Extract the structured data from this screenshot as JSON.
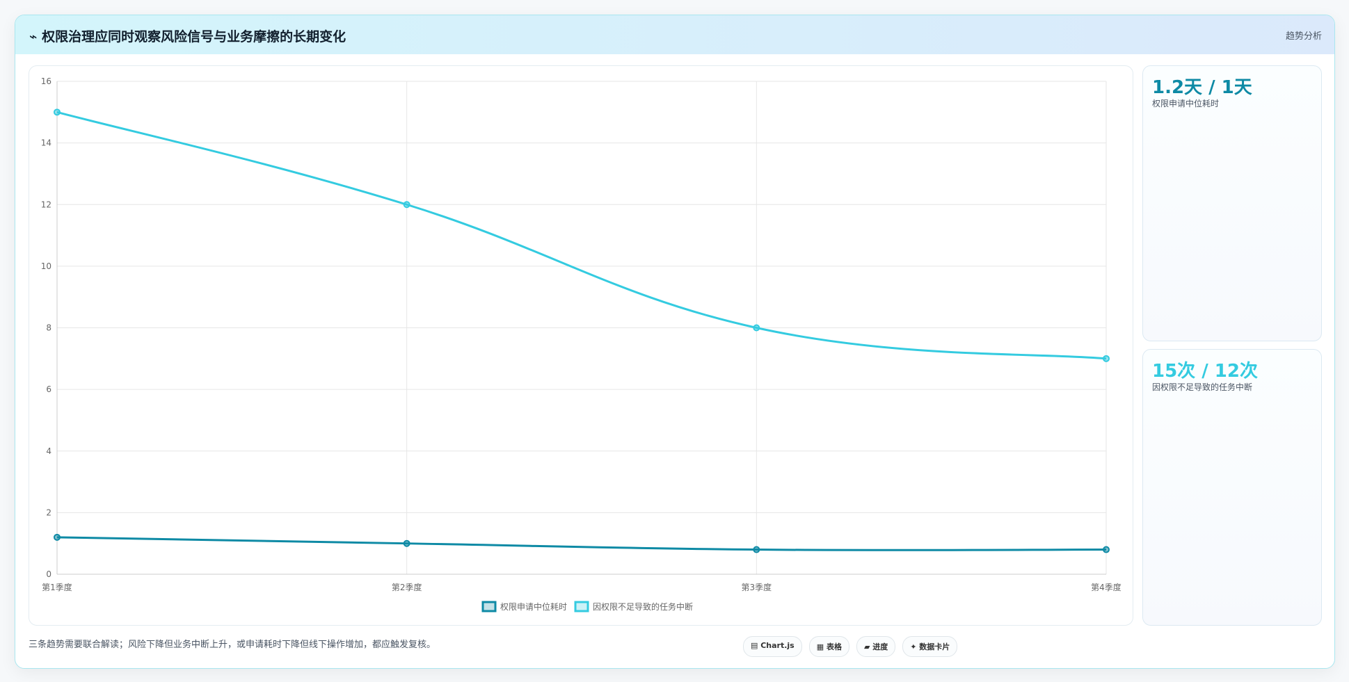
{
  "header": {
    "icon": "⌁",
    "title": "权限治理应同时观察风险信号与业务摩擦的长期变化",
    "tag": "趋势分析"
  },
  "chart_data": {
    "type": "line",
    "categories": [
      "第1季度",
      "第2季度",
      "第3季度",
      "第4季度"
    ],
    "series": [
      {
        "name": "权限申请中位耗时",
        "color": "#0e8aa5",
        "values": [
          1.2,
          1,
          0.8,
          0.8
        ]
      },
      {
        "name": "因权限不足导致的任务中断",
        "color": "#34cbe0",
        "values": [
          15,
          12,
          8,
          7
        ]
      }
    ],
    "ylim": [
      0,
      16
    ],
    "yticks": [
      0,
      2,
      4,
      6,
      8,
      10,
      12,
      14,
      16
    ],
    "grid": true,
    "legend": "bottom"
  },
  "cards": [
    {
      "value": "1.2天 / 1天",
      "label": "权限申请中位耗时",
      "color": "#0e8aa5"
    },
    {
      "value": "15次 / 12次",
      "label": "因权限不足导致的任务中断",
      "color": "#34cbe0"
    }
  ],
  "footer": {
    "note": "三条趋势需要联合解读；风险下降但业务中断上升，或申请耗时下降但线下操作增加，都应触发复核。",
    "buttons": [
      "▤ Chart.js",
      "▦ 表格",
      "▰ 进度",
      "✦ 数据卡片"
    ]
  }
}
